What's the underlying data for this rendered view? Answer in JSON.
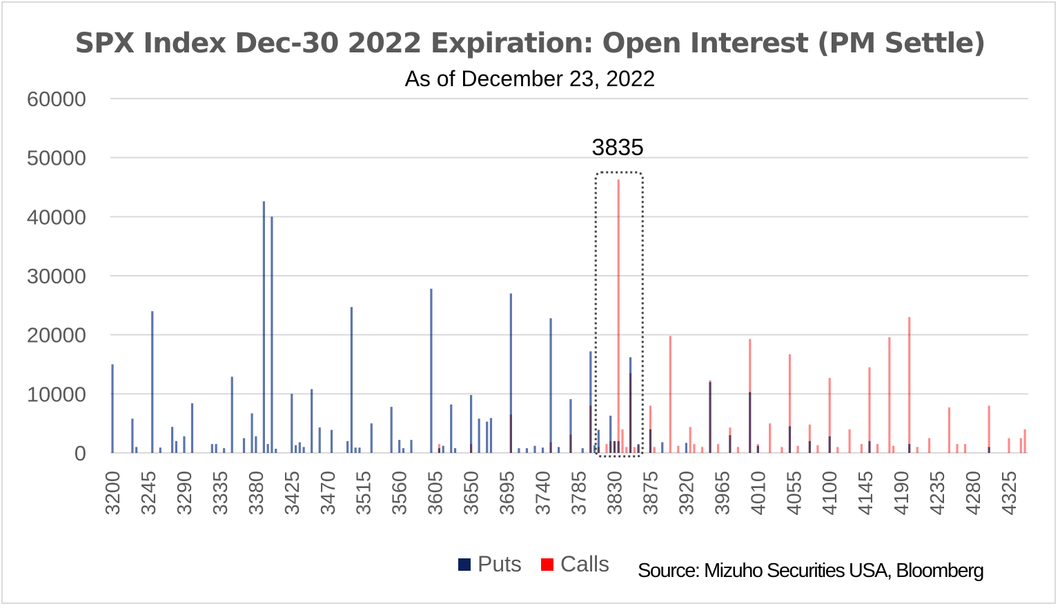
{
  "chart_data": {
    "type": "bar",
    "title": "SPX Index Dec-30 2022 Expiration: Open Interest  (PM Settle)",
    "subtitle": "As of December 23, 2022",
    "xlabel": "",
    "ylabel": "",
    "x_range": [
      3200,
      4345
    ],
    "x_step": 5,
    "x_tick_labels": [
      "3200",
      "3245",
      "3290",
      "3335",
      "3380",
      "3425",
      "3470",
      "3515",
      "3560",
      "3605",
      "3650",
      "3695",
      "3740",
      "3785",
      "3830",
      "3875",
      "3920",
      "3965",
      "4010",
      "4055",
      "4100",
      "4145",
      "4190",
      "4235",
      "4280",
      "4325"
    ],
    "y_tick_labels": [
      "0",
      "10000",
      "20000",
      "30000",
      "40000",
      "50000",
      "60000"
    ],
    "ylim": [
      0,
      60000
    ],
    "grid": true,
    "legend_position": "bottom",
    "series": [
      {
        "name": "Puts",
        "color": "#0b1f5c",
        "bar_color": "#3f5d9e",
        "points": [
          [
            3200,
            15000
          ],
          [
            3225,
            5800
          ],
          [
            3230,
            1000
          ],
          [
            3250,
            24000
          ],
          [
            3260,
            900
          ],
          [
            3275,
            4400
          ],
          [
            3280,
            2000
          ],
          [
            3290,
            2800
          ],
          [
            3300,
            8400
          ],
          [
            3325,
            1500
          ],
          [
            3330,
            1500
          ],
          [
            3340,
            800
          ],
          [
            3350,
            12900
          ],
          [
            3365,
            2500
          ],
          [
            3375,
            6700
          ],
          [
            3380,
            2800
          ],
          [
            3390,
            42600
          ],
          [
            3395,
            1500
          ],
          [
            3400,
            40000
          ],
          [
            3405,
            700
          ],
          [
            3425,
            10000
          ],
          [
            3430,
            1300
          ],
          [
            3435,
            1800
          ],
          [
            3440,
            1000
          ],
          [
            3450,
            10800
          ],
          [
            3460,
            4300
          ],
          [
            3475,
            3900
          ],
          [
            3495,
            2000
          ],
          [
            3500,
            24700
          ],
          [
            3505,
            900
          ],
          [
            3510,
            900
          ],
          [
            3525,
            5000
          ],
          [
            3550,
            7800
          ],
          [
            3560,
            2200
          ],
          [
            3565,
            800
          ],
          [
            3575,
            2200
          ],
          [
            3600,
            27800
          ],
          [
            3610,
            800
          ],
          [
            3615,
            1200
          ],
          [
            3625,
            8200
          ],
          [
            3630,
            800
          ],
          [
            3650,
            9800
          ],
          [
            3660,
            5800
          ],
          [
            3670,
            5300
          ],
          [
            3675,
            5900
          ],
          [
            3700,
            27000
          ],
          [
            3710,
            800
          ],
          [
            3720,
            800
          ],
          [
            3730,
            1200
          ],
          [
            3740,
            900
          ],
          [
            3750,
            22800
          ],
          [
            3760,
            1000
          ],
          [
            3775,
            9100
          ],
          [
            3790,
            800
          ],
          [
            3800,
            17200
          ],
          [
            3805,
            1300
          ],
          [
            3810,
            3900
          ],
          [
            3825,
            6300
          ],
          [
            3830,
            2000
          ],
          [
            3835,
            2000
          ],
          [
            3850,
            16200
          ],
          [
            3860,
            1500
          ],
          [
            3875,
            4000
          ],
          [
            3890,
            1800
          ],
          [
            3920,
            1700
          ],
          [
            3950,
            12000
          ],
          [
            3975,
            3000
          ],
          [
            4000,
            10300
          ],
          [
            4010,
            1200
          ],
          [
            4050,
            4500
          ],
          [
            4075,
            2000
          ],
          [
            4100,
            2800
          ],
          [
            4150,
            2000
          ],
          [
            4200,
            1500
          ],
          [
            4300,
            1000
          ]
        ]
      },
      {
        "name": "Calls",
        "color": "#ff0000",
        "bar_color": "#ff5a5a",
        "points": [
          [
            3610,
            1500
          ],
          [
            3650,
            1500
          ],
          [
            3700,
            6500
          ],
          [
            3750,
            1800
          ],
          [
            3775,
            3100
          ],
          [
            3800,
            8000
          ],
          [
            3810,
            1000
          ],
          [
            3820,
            1500
          ],
          [
            3825,
            2000
          ],
          [
            3830,
            2000
          ],
          [
            3835,
            46300
          ],
          [
            3840,
            4000
          ],
          [
            3845,
            1000
          ],
          [
            3850,
            13500
          ],
          [
            3855,
            1000
          ],
          [
            3860,
            1300
          ],
          [
            3875,
            8000
          ],
          [
            3880,
            1000
          ],
          [
            3900,
            19800
          ],
          [
            3910,
            1200
          ],
          [
            3925,
            4400
          ],
          [
            3930,
            1500
          ],
          [
            3940,
            1000
          ],
          [
            3950,
            12300
          ],
          [
            3960,
            1500
          ],
          [
            3975,
            4300
          ],
          [
            3985,
            1000
          ],
          [
            4000,
            19300
          ],
          [
            4010,
            1500
          ],
          [
            4025,
            5000
          ],
          [
            4040,
            1000
          ],
          [
            4050,
            16700
          ],
          [
            4060,
            1200
          ],
          [
            4075,
            4800
          ],
          [
            4085,
            1300
          ],
          [
            4100,
            12700
          ],
          [
            4110,
            1000
          ],
          [
            4125,
            4000
          ],
          [
            4140,
            1500
          ],
          [
            4150,
            14500
          ],
          [
            4160,
            1500
          ],
          [
            4175,
            19600
          ],
          [
            4180,
            1200
          ],
          [
            4200,
            23000
          ],
          [
            4210,
            1000
          ],
          [
            4225,
            2500
          ],
          [
            4250,
            7700
          ],
          [
            4260,
            1500
          ],
          [
            4270,
            1500
          ],
          [
            4300,
            8000
          ],
          [
            4325,
            2500
          ],
          [
            4340,
            2500
          ],
          [
            4345,
            4000
          ]
        ]
      }
    ],
    "annotations": [
      {
        "text": "3835",
        "highlight_strike": 3835
      }
    ],
    "source": "Source: Mizuho Securities USA,  Bloomberg"
  }
}
